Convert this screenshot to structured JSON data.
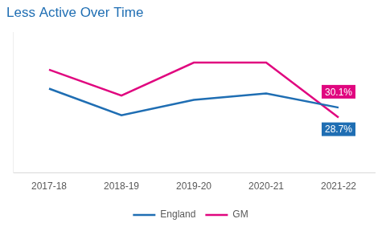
{
  "chart_data": {
    "type": "line",
    "title": "Less Active Over Time",
    "categories": [
      "2017-18",
      "2018-19",
      "2019-20",
      "2020-21",
      "2021-22"
    ],
    "series": [
      {
        "name": "England",
        "color": "#1f6eb3",
        "values": [
          26.0,
          29.8,
          27.6,
          26.7,
          28.7
        ],
        "value_labels": [
          null,
          null,
          null,
          null,
          "28.7%"
        ]
      },
      {
        "name": "GM",
        "color": "#e0067f",
        "values": [
          23.3,
          27.0,
          22.3,
          22.3,
          30.1
        ],
        "value_labels": [
          null,
          null,
          null,
          null,
          "30.1%"
        ]
      }
    ],
    "ylim": [
      38,
      18
    ],
    "grid": false,
    "legend": "bottom",
    "data_labels": true,
    "tick_labels": "x"
  }
}
